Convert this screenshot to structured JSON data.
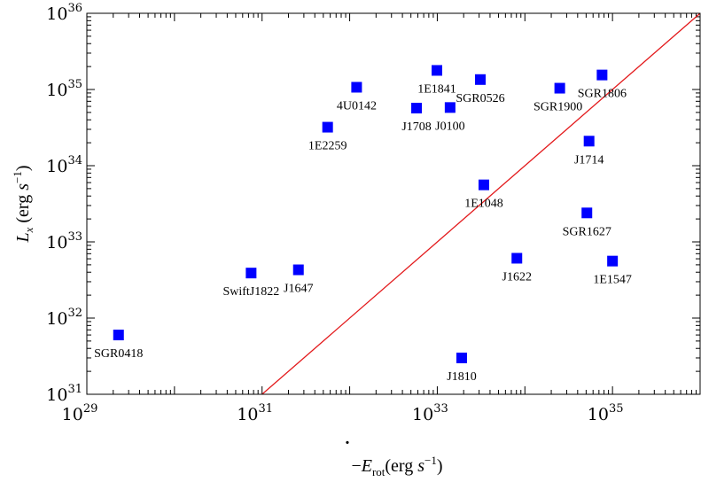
{
  "chart_data": {
    "type": "scatter",
    "xscale": "log",
    "yscale": "log",
    "xlim": [
      1e+29,
      1e+36
    ],
    "ylim": [
      1e+31,
      1e+36
    ],
    "xlabel": {
      "prefix": "−",
      "symbol": "E",
      "dot": "·",
      "subscript": "rot",
      "unit_open": "(erg ",
      "unit_var": "s",
      "unit_exp": "−1",
      "unit_close": ")"
    },
    "ylabel": {
      "symbol": "L",
      "subscript": "x",
      "unit_open": " (erg ",
      "unit_var": "s",
      "unit_exp": "−1",
      "unit_close": ")"
    },
    "x_ticks": [
      {
        "value": 1e+29,
        "base": "10",
        "exp": "29"
      },
      {
        "value": 1e+31,
        "base": "10",
        "exp": "31"
      },
      {
        "value": 1e+33,
        "base": "10",
        "exp": "33"
      },
      {
        "value": 1e+35,
        "base": "10",
        "exp": "35"
      }
    ],
    "y_ticks": [
      {
        "value": 1e+31,
        "base": "10",
        "exp": "31"
      },
      {
        "value": 1e+32,
        "base": "10",
        "exp": "32"
      },
      {
        "value": 1e+33,
        "base": "10",
        "exp": "33"
      },
      {
        "value": 1e+34,
        "base": "10",
        "exp": "34"
      },
      {
        "value": 1e+35,
        "base": "10",
        "exp": "35"
      },
      {
        "value": 1e+36,
        "base": "10",
        "exp": "36"
      }
    ],
    "marker_color": "#0000ff",
    "line_color": "#e31a1c",
    "reference_line": {
      "x": [
        1e+31,
        1e+36
      ],
      "y": [
        1e+31,
        1e+36
      ]
    },
    "points": [
      {
        "label": "SGR0418",
        "x": 2.3e+29,
        "y": 6e+31,
        "label_pos": "below"
      },
      {
        "label": "SwiftJ1822",
        "x": 7.5e+30,
        "y": 3.9e+32,
        "label_pos": "below"
      },
      {
        "label": "J1647",
        "x": 2.6e+31,
        "y": 4.3e+32,
        "label_pos": "below"
      },
      {
        "label": "1E2259",
        "x": 5.6e+31,
        "y": 3.2e+34,
        "label_pos": "below"
      },
      {
        "label": "4U0142",
        "x": 1.2e+32,
        "y": 1.07e+35,
        "label_pos": "below"
      },
      {
        "label": "J1708",
        "x": 5.8e+32,
        "y": 5.7e+34,
        "label_pos": "below"
      },
      {
        "label": "1E1841",
        "x": 9.9e+32,
        "y": 1.78e+35,
        "label_pos": "below"
      },
      {
        "label": "J0100",
        "x": 1.4e+33,
        "y": 5.8e+34,
        "label_pos": "below"
      },
      {
        "label": "SGR0526",
        "x": 3.1e+33,
        "y": 1.35e+35,
        "label_pos": "below"
      },
      {
        "label": "1E1048",
        "x": 3.4e+33,
        "y": 5.6e+33,
        "label_pos": "below"
      },
      {
        "label": "J1810",
        "x": 1.9e+33,
        "y": 3e+31,
        "label_pos": "below"
      },
      {
        "label": "J1622",
        "x": 8.1e+33,
        "y": 6.1e+32,
        "label_pos": "below"
      },
      {
        "label": "SGR1900",
        "x": 2.5e+34,
        "y": 1.04e+35,
        "label_pos": "below-left"
      },
      {
        "label": "SGR1806",
        "x": 7.6e+34,
        "y": 1.55e+35,
        "label_pos": "below"
      },
      {
        "label": "J1714",
        "x": 5.4e+34,
        "y": 2.1e+34,
        "label_pos": "below"
      },
      {
        "label": "SGR1627",
        "x": 5.1e+34,
        "y": 2.4e+33,
        "label_pos": "below"
      },
      {
        "label": "1E1547",
        "x": 1e+35,
        "y": 5.6e+32,
        "label_pos": "below"
      }
    ]
  }
}
